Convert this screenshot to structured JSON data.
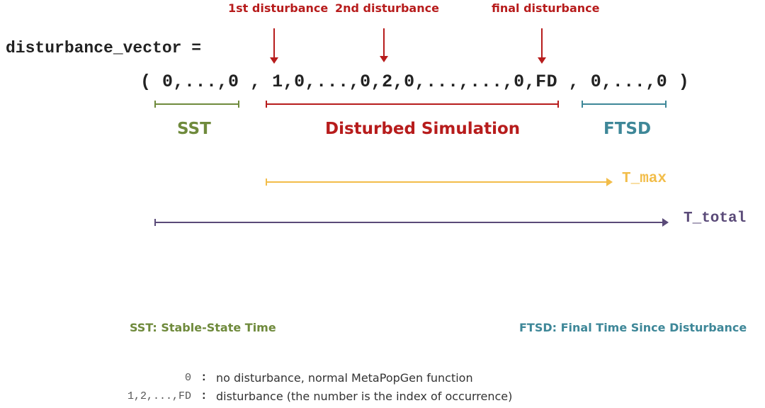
{
  "markers": {
    "first": "1st disturbance",
    "second": "2nd disturbance",
    "final": "final disturbance"
  },
  "variable": "disturbance_vector =",
  "vector": {
    "open": "( 0,...,0",
    "sep1": ",",
    "middle": "1,0,...,0,2,0,...,...,0,",
    "fd": "FD",
    "sep2": ",",
    "close": "0,...,0 )"
  },
  "segments": {
    "sst": "SST",
    "disturbed": "Disturbed Simulation",
    "ftsd": "FTSD"
  },
  "timelines": {
    "tmax": "T_max",
    "ttotal": "T_total"
  },
  "definitions": {
    "sst": "SST: Stable-State Time",
    "ftsd": "FTSD: Final Time Since Disturbance"
  },
  "key": [
    {
      "symbol": "0",
      "colon": ":",
      "desc": "no disturbance, normal MetaPopGen function"
    },
    {
      "symbol": "1,2,...,FD",
      "colon": ":",
      "desc": "disturbance (the number is the index of occurrence)"
    }
  ],
  "colors": {
    "red": "#b71c1c",
    "green": "#6f8a3c",
    "teal": "#3e8798",
    "yellow": "#f2bd4a",
    "purple": "#5a4a78"
  }
}
